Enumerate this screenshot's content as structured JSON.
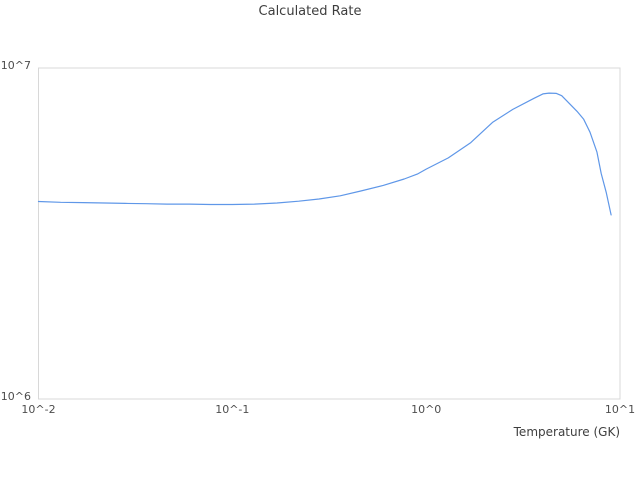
{
  "chart_data": {
    "type": "line",
    "title": "Calculated Rate",
    "xlabel": "Temperature (GK)",
    "ylabel": "",
    "x_scale": "log",
    "y_scale": "log",
    "xlim": [
      0.01,
      10
    ],
    "ylim": [
      1000000,
      10000000
    ],
    "grid": false,
    "legend": "none",
    "plot_border_color": "#d8d8d8",
    "x_ticks": [
      0.01,
      0.1,
      1,
      10
    ],
    "x_tick_labels": [
      "10^-2",
      "10^-1",
      "10^0",
      "10^1"
    ],
    "y_ticks": [
      1000000,
      10000000
    ],
    "y_tick_labels": [
      "10^6",
      "10^7"
    ],
    "series": [
      {
        "name": "calculated-rate",
        "color": "#5f97e8",
        "x": [
          0.01,
          0.013,
          0.017,
          0.022,
          0.028,
          0.036,
          0.046,
          0.06,
          0.077,
          0.1,
          0.13,
          0.17,
          0.22,
          0.28,
          0.36,
          0.46,
          0.6,
          0.77,
          0.9,
          1.0,
          1.3,
          1.7,
          2.2,
          2.8,
          3.6,
          4.0,
          4.3,
          4.7,
          5.0,
          6.0,
          6.5,
          7.0,
          7.6,
          8.0,
          8.5,
          9.0
        ],
        "y": [
          3950000.0,
          3930000.0,
          3920000.0,
          3910000.0,
          3900000.0,
          3890000.0,
          3880000.0,
          3880000.0,
          3870000.0,
          3870000.0,
          3880000.0,
          3910000.0,
          3960000.0,
          4020000.0,
          4110000.0,
          4250000.0,
          4420000.0,
          4620000.0,
          4780000.0,
          4950000.0,
          5350000.0,
          5950000.0,
          6850000.0,
          7500000.0,
          8100000.0,
          8350000.0,
          8400000.0,
          8380000.0,
          8250000.0,
          7400000.0,
          7000000.0,
          6400000.0,
          5580000.0,
          4800000.0,
          4200000.0,
          3600000.0
        ]
      }
    ]
  }
}
